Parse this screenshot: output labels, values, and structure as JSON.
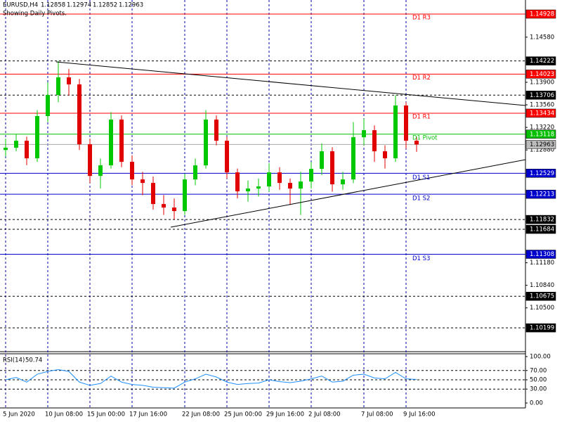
{
  "chart_data": [
    {
      "type": "candlestick",
      "symbol": "EURUSD,H4",
      "header_values": [
        1.12858,
        1.12974,
        1.12852,
        1.12963
      ],
      "subtitle": "Showing Daily Pivots.",
      "categories": [
        "5 Jun 2020",
        null,
        null,
        null,
        "10 Jun 08:00",
        null,
        null,
        null,
        "15 Jun 00:00",
        null,
        null,
        null,
        "17 Jun 16:00",
        null,
        null,
        null,
        null,
        "22 Jun 08:00",
        null,
        null,
        null,
        "25 Jun 00:00",
        null,
        null,
        null,
        "29 Jun 16:00",
        null,
        null,
        null,
        "2 Jul 08:00",
        null,
        null,
        null,
        null,
        "7 Jul 08:00",
        null,
        null,
        null,
        "9 Jul 16:00",
        null
      ],
      "open": [
        1.1288,
        1.12913,
        1.13019,
        1.12754,
        1.13391,
        1.13709,
        1.13974,
        1.13868,
        1.12966,
        1.12489,
        1.12648,
        1.13338,
        1.12701,
        1.12436,
        1.12383,
        1.12065,
        1.12012,
        1.11959,
        1.12436,
        1.12648,
        1.13338,
        1.13019,
        1.12542,
        1.12256,
        1.12298,
        1.1233,
        1.12542,
        1.12383,
        1.12298,
        1.12404,
        1.12595,
        1.1286,
        1.12362,
        1.12436,
        1.13072,
        1.13178,
        1.1286,
        1.12754,
        1.1355,
        1.13019
      ],
      "high": [
        1.1305,
        1.1312,
        1.1308,
        1.1348,
        1.139,
        1.14222,
        1.141,
        1.1395,
        1.1305,
        1.1275,
        1.1345,
        1.134,
        1.128,
        1.1255,
        1.1248,
        1.122,
        1.1215,
        1.1252,
        1.1275,
        1.1348,
        1.134,
        1.1308,
        1.126,
        1.1242,
        1.1245,
        1.1268,
        1.1262,
        1.1245,
        1.1255,
        1.127,
        1.1298,
        1.1292,
        1.1255,
        1.133,
        1.1335,
        1.1325,
        1.1295,
        1.13706,
        1.136,
        1.1308
      ],
      "low": [
        1.1278,
        1.1286,
        1.1265,
        1.127,
        1.133,
        1.136,
        1.137,
        1.1288,
        1.1238,
        1.123,
        1.126,
        1.1262,
        1.1235,
        1.122,
        1.1198,
        1.119,
        1.11832,
        1.119,
        1.1235,
        1.126,
        1.1295,
        1.1245,
        1.1215,
        1.121,
        1.1218,
        1.1225,
        1.1228,
        1.1205,
        1.119,
        1.123,
        1.125,
        1.1225,
        1.1228,
        1.1238,
        1.1295,
        1.127,
        1.126,
        1.127,
        1.129,
        1.12852
      ],
      "close": [
        1.12913,
        1.13019,
        1.12754,
        1.13391,
        1.13709,
        1.13974,
        1.13868,
        1.12966,
        1.12489,
        1.12648,
        1.13338,
        1.12701,
        1.12436,
        1.12383,
        1.12065,
        1.12012,
        1.11959,
        1.12436,
        1.12648,
        1.13338,
        1.13019,
        1.12542,
        1.12256,
        1.12298,
        1.1233,
        1.12542,
        1.12383,
        1.12298,
        1.12404,
        1.12595,
        1.1286,
        1.12362,
        1.12436,
        1.13072,
        1.13178,
        1.1286,
        1.12754,
        1.1355,
        1.13019,
        1.12963
      ],
      "up_color": "#00c800",
      "down_color": "#e00000",
      "ylim": [
        1.0984,
        1.1514
      ],
      "yticks": [
        {
          "value": 1.1458,
          "label": "1.14580"
        },
        {
          "value": 1.139,
          "label": "1.13900"
        },
        {
          "value": 1.1356,
          "label": "1.13560"
        },
        {
          "value": 1.1322,
          "label": "1.13220"
        },
        {
          "value": 1.1288,
          "label": "1.12880"
        },
        {
          "value": 1.1118,
          "label": "1.11180"
        },
        {
          "value": 1.1084,
          "label": "1.10840"
        },
        {
          "value": 1.105,
          "label": "1.10500"
        }
      ],
      "pivots": [
        {
          "label": "D1  R3",
          "value": 1.14928,
          "color": "#ff0000"
        },
        {
          "label": "D1  R2",
          "value": 1.14023,
          "color": "#ff0000"
        },
        {
          "label": "D1  R1",
          "value": 1.13434,
          "color": "#ff0000"
        },
        {
          "label": "D1  Pivot",
          "value": 1.13118,
          "color": "#00c000"
        },
        {
          "label": "D1  S1",
          "value": 1.12529,
          "color": "#0000cc"
        },
        {
          "label": "D1  S2",
          "value": 1.12213,
          "color": "#0000cc"
        },
        {
          "label": "D1  S3",
          "value": 1.11308,
          "color": "#0000cc"
        }
      ],
      "levels": [
        1.14222,
        1.13706,
        1.11832,
        1.11684,
        1.10675,
        1.10199
      ],
      "current_price": 1.12963
    },
    {
      "type": "line",
      "label": "RSI(14)",
      "series": [
        {
          "name": "RSI(14)",
          "color": "#1e90ff",
          "values": [
            50,
            55,
            45,
            62,
            68,
            72,
            68,
            45,
            38,
            42,
            58,
            45,
            40,
            38,
            34,
            33,
            32,
            45,
            52,
            62,
            56,
            45,
            40,
            42,
            43,
            50,
            46,
            44,
            47,
            52,
            58,
            45,
            47,
            60,
            62,
            54,
            52,
            66,
            52,
            50.74
          ]
        }
      ],
      "ylim": [
        -10.6,
        106
      ],
      "yticks": [
        {
          "value": 100,
          "label": "100.00"
        },
        {
          "value": 70,
          "label": "70.00"
        },
        {
          "value": 50,
          "label": "50.00"
        },
        {
          "value": 30,
          "label": "30.00"
        },
        {
          "value": 0,
          "label": "0.00"
        }
      ],
      "levels": [
        70,
        50,
        30
      ]
    }
  ]
}
